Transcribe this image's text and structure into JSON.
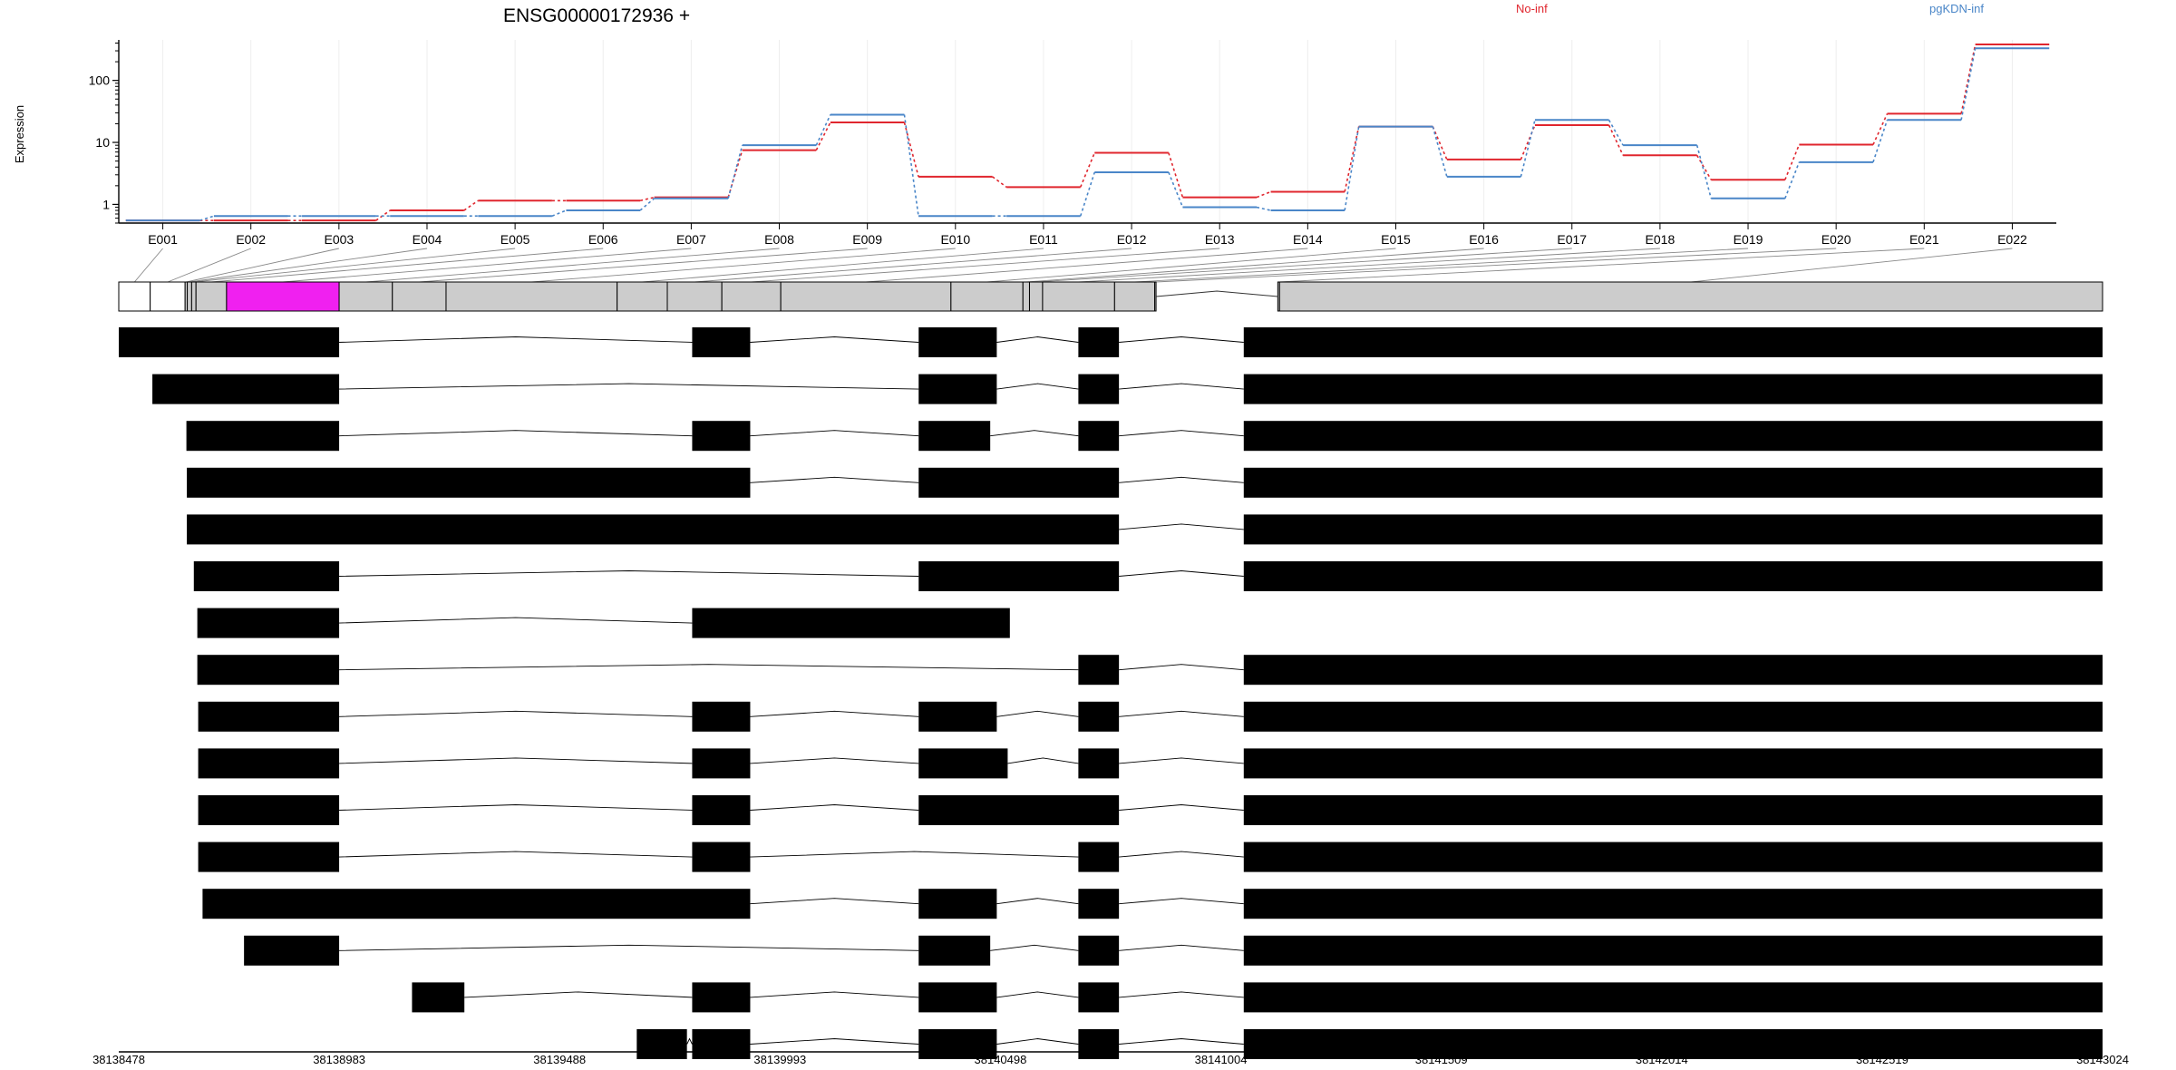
{
  "chart_data": {
    "type": "line",
    "title": "ENSG00000172936 +",
    "ylabel": "Expression",
    "xlabel": "",
    "y_scale": "log",
    "y_ticks": [
      1,
      10,
      100
    ],
    "y_tick_labels": [
      "1",
      "10",
      "100"
    ],
    "ylim": [
      0.5,
      450
    ],
    "categories": [
      "E001",
      "E002",
      "E003",
      "E004",
      "E005",
      "E006",
      "E007",
      "E008",
      "E009",
      "E010",
      "E011",
      "E012",
      "E013",
      "E014",
      "E015",
      "E016",
      "E017",
      "E018",
      "E019",
      "E020",
      "E021",
      "E022"
    ],
    "series": [
      {
        "name": "No-inf",
        "color": "#e0262e",
        "values": [
          0.55,
          0.55,
          0.55,
          0.8,
          1.15,
          1.15,
          1.3,
          7.5,
          21,
          2.8,
          1.9,
          6.8,
          1.3,
          1.6,
          18,
          5.3,
          19,
          6.2,
          2.5,
          9.2,
          29,
          380
        ]
      },
      {
        "name": "pgKDN-inf",
        "color": "#4a86c8",
        "values": [
          0.55,
          0.65,
          0.65,
          0.65,
          0.65,
          0.8,
          1.25,
          9,
          28,
          0.65,
          0.65,
          3.3,
          0.9,
          0.8,
          18,
          2.8,
          23,
          9,
          1.25,
          4.8,
          23,
          330
        ]
      }
    ],
    "legend": [
      "No-inf",
      "pgKDN-inf"
    ],
    "legend_placement": "top-right",
    "grid": true,
    "genomic_axis": {
      "range": [
        38138478,
        38143024
      ],
      "tick_labels": [
        "38138478",
        "38138983",
        "38139488",
        "38139993",
        "38140498",
        "38141004",
        "38141509",
        "38142014",
        "38142519",
        "38143024"
      ]
    },
    "exon_bins": [
      {
        "id": "E001",
        "start": 38138478,
        "end": 38138550,
        "fill": "#ffffff"
      },
      {
        "id": "E002",
        "start": 38138550,
        "end": 38138630,
        "fill": "#ffffff"
      },
      {
        "id": "E003",
        "start": 38138630,
        "end": 38138635,
        "fill": "#cccccc"
      },
      {
        "id": "E004",
        "start": 38138635,
        "end": 38138645,
        "fill": "#cccccc"
      },
      {
        "id": "E005",
        "start": 38138645,
        "end": 38138655,
        "fill": "#cccccc"
      },
      {
        "id": "E006",
        "start": 38138655,
        "end": 38138725,
        "fill": "#cccccc"
      },
      {
        "id": "E007",
        "start": 38138725,
        "end": 38138983,
        "fill": "#f020f0"
      },
      {
        "id": "E008",
        "start": 38138983,
        "end": 38139105,
        "fill": "#cccccc"
      },
      {
        "id": "E009",
        "start": 38139105,
        "end": 38139228,
        "fill": "#cccccc"
      },
      {
        "id": "E010",
        "start": 38139228,
        "end": 38139620,
        "fill": "#cccccc"
      },
      {
        "id": "E011",
        "start": 38139620,
        "end": 38139735,
        "fill": "#cccccc"
      },
      {
        "id": "E012",
        "start": 38139735,
        "end": 38139860,
        "fill": "#cccccc"
      },
      {
        "id": "E013",
        "start": 38139860,
        "end": 38139995,
        "fill": "#cccccc"
      },
      {
        "id": "E014",
        "start": 38139995,
        "end": 38140385,
        "fill": "#cccccc"
      },
      {
        "id": "E015",
        "start": 38140385,
        "end": 38140550,
        "fill": "#cccccc"
      },
      {
        "id": "E016",
        "start": 38140550,
        "end": 38140565,
        "fill": "#cccccc"
      },
      {
        "id": "E017",
        "start": 38140565,
        "end": 38140595,
        "fill": "#cccccc"
      },
      {
        "id": "E018",
        "start": 38140595,
        "end": 38140760,
        "fill": "#cccccc"
      },
      {
        "id": "E019",
        "start": 38140760,
        "end": 38140852,
        "fill": "#cccccc"
      },
      {
        "id": "E020",
        "start": 38140852,
        "end": 38140855,
        "fill": "#cccccc"
      },
      {
        "id": "E021",
        "start": 38141134,
        "end": 38141138,
        "fill": "#cccccc"
      },
      {
        "id": "E022",
        "start": 38141138,
        "end": 38143024,
        "fill": "#cccccc"
      }
    ],
    "transcripts": [
      [
        [
          38138478,
          38138983
        ],
        [
          38139792,
          38139925
        ],
        [
          38140311,
          38140490
        ],
        [
          38140677,
          38140770
        ],
        [
          38141056,
          38143024
        ]
      ],
      [
        [
          38138555,
          38138983
        ],
        [
          38140311,
          38140490
        ],
        [
          38140677,
          38140770
        ],
        [
          38141056,
          38143024
        ]
      ],
      [
        [
          38138633,
          38138983
        ],
        [
          38139792,
          38139925
        ],
        [
          38140311,
          38140475
        ],
        [
          38140677,
          38140770
        ],
        [
          38141056,
          38143024
        ]
      ],
      [
        [
          38138634,
          38139925
        ],
        [
          38140311,
          38140770
        ],
        [
          38141056,
          38143024
        ]
      ],
      [
        [
          38138634,
          38140770
        ],
        [
          38141056,
          38143024
        ]
      ],
      [
        [
          38138650,
          38138983
        ],
        [
          38140311,
          38140770
        ],
        [
          38141056,
          38143024
        ]
      ],
      [
        [
          38138658,
          38138983
        ],
        [
          38139792,
          38140520
        ]
      ],
      [
        [
          38138658,
          38138983
        ],
        [
          38140677,
          38140770
        ],
        [
          38141056,
          38143024
        ]
      ],
      [
        [
          38138660,
          38138983
        ],
        [
          38139792,
          38139925
        ],
        [
          38140311,
          38140490
        ],
        [
          38140677,
          38140770
        ],
        [
          38141056,
          38143024
        ]
      ],
      [
        [
          38138660,
          38138983
        ],
        [
          38139792,
          38139925
        ],
        [
          38140311,
          38140515
        ],
        [
          38140677,
          38140770
        ],
        [
          38141056,
          38143024
        ]
      ],
      [
        [
          38138660,
          38138983
        ],
        [
          38139792,
          38139925
        ],
        [
          38140311,
          38140770
        ],
        [
          38141056,
          38143024
        ]
      ],
      [
        [
          38138660,
          38138983
        ],
        [
          38139792,
          38139925
        ],
        [
          38140677,
          38140770
        ],
        [
          38141056,
          38143024
        ]
      ],
      [
        [
          38138670,
          38139925
        ],
        [
          38140311,
          38140490
        ],
        [
          38140677,
          38140770
        ],
        [
          38141056,
          38143024
        ]
      ],
      [
        [
          38138765,
          38138983
        ],
        [
          38140311,
          38140475
        ],
        [
          38140677,
          38140770
        ],
        [
          38141056,
          38143024
        ]
      ],
      [
        [
          38139150,
          38139270
        ],
        [
          38139792,
          38139925
        ],
        [
          38140311,
          38140490
        ],
        [
          38140677,
          38140770
        ],
        [
          38141056,
          38143024
        ]
      ],
      [
        [
          38139665,
          38139780
        ],
        [
          38139792,
          38139925
        ],
        [
          38140311,
          38140490
        ],
        [
          38140677,
          38140770
        ],
        [
          38141056,
          38143024
        ]
      ]
    ]
  }
}
